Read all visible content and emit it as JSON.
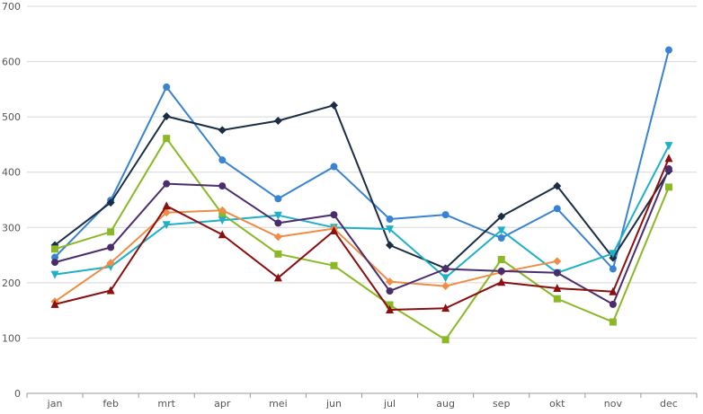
{
  "chart_data": {
    "type": "line",
    "title": "",
    "xlabel": "",
    "ylabel": "",
    "ylim": [
      0,
      700
    ],
    "yticks": [
      0,
      100,
      200,
      300,
      400,
      500,
      600,
      700
    ],
    "grid": "horizontal",
    "legend": "none",
    "categories": [
      "jan",
      "feb",
      "mrt",
      "apr",
      "mei",
      "jun",
      "jul",
      "aug",
      "sep",
      "okt",
      "nov",
      "dec"
    ],
    "series": [
      {
        "color": "#3a82d2",
        "marker": "circle",
        "values": [
          246,
          349,
          554,
          422,
          352,
          410,
          315,
          323,
          281,
          334,
          225,
          621
        ]
      },
      {
        "color": "#1b2d45",
        "marker": "diamond",
        "values": [
          268,
          345,
          501,
          476,
          493,
          521,
          268,
          226,
          320,
          375,
          245,
          402
        ]
      },
      {
        "color": "#8ab827",
        "marker": "square",
        "values": [
          261,
          292,
          461,
          324,
          252,
          231,
          160,
          97,
          242,
          171,
          129,
          373
        ]
      },
      {
        "color": "#1fb0c7",
        "marker": "triangle-down",
        "values": [
          215,
          229,
          305,
          313,
          322,
          300,
          297,
          209,
          295,
          218,
          253,
          448
        ]
      },
      {
        "color": "#ef8c45",
        "marker": "diamond",
        "values": [
          166,
          236,
          327,
          331,
          283,
          298,
          202,
          194,
          219,
          239,
          null,
          null
        ]
      },
      {
        "color": "#4b2d6e",
        "marker": "circle",
        "values": [
          237,
          264,
          379,
          375,
          308,
          323,
          185,
          225,
          221,
          218,
          161,
          406
        ]
      },
      {
        "color": "#8b0f0f",
        "marker": "triangle",
        "values": [
          161,
          186,
          339,
          287,
          209,
          294,
          151,
          154,
          201,
          190,
          184,
          425
        ]
      }
    ]
  }
}
